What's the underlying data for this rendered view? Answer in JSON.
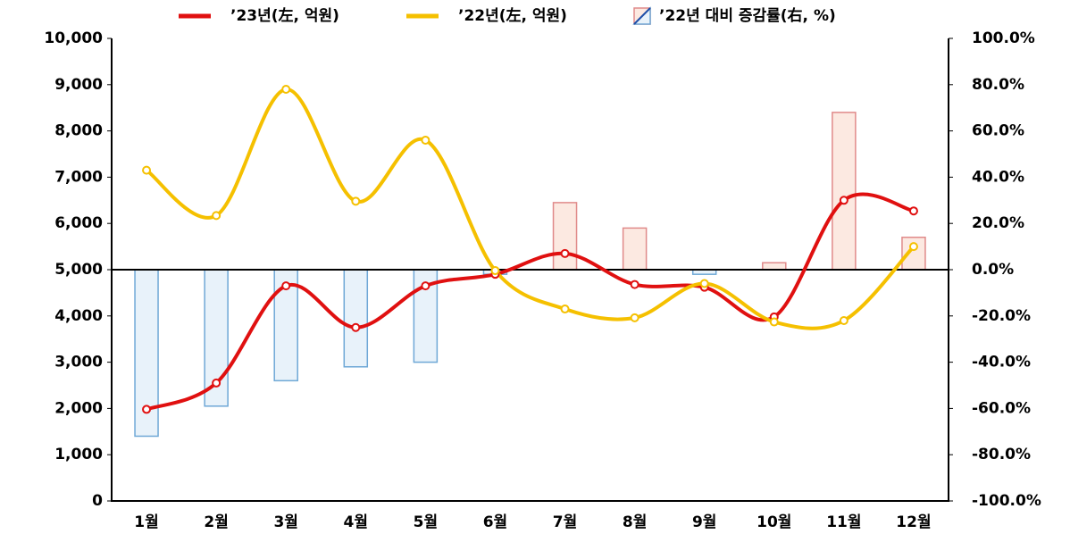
{
  "chart_data": {
    "type": "line",
    "categories": [
      "1월",
      "2월",
      "3월",
      "4월",
      "5월",
      "6월",
      "7월",
      "8월",
      "9월",
      "10월",
      "11월",
      "12월"
    ],
    "series": [
      {
        "name": "’23년(左, 억원)",
        "color": "#e01010",
        "values": [
          1980,
          2550,
          4650,
          3750,
          4650,
          4900,
          5350,
          4680,
          4620,
          3980,
          6500,
          6270
        ]
      },
      {
        "name": "’22년(左, 억원)",
        "color": "#f5c000",
        "values": [
          7150,
          6170,
          8900,
          6480,
          7800,
          4980,
          4150,
          3960,
          4700,
          3870,
          3900,
          5500
        ]
      },
      {
        "name": "’22년 대비 증감률(右, %)",
        "type": "bar",
        "axis": "y2",
        "color": "#fce9e1",
        "negative_color": "#e8f2fa",
        "values": [
          -72,
          -59,
          -48,
          -42,
          -40,
          -2,
          29,
          18,
          -2,
          3,
          68,
          14
        ]
      }
    ],
    "ylim": [
      0,
      10000
    ],
    "yticks": [
      0,
      {
        "value": 1000,
        "label": "1,000"
      },
      {
        "value": 2000,
        "label": "2,000"
      },
      {
        "value": 3000,
        "label": "3,000"
      },
      {
        "value": 4000,
        "label": "4,000"
      },
      {
        "value": 5000,
        "label": "5,000"
      },
      {
        "value": 6000,
        "label": "6,000"
      },
      {
        "value": 7000,
        "label": "7,000"
      },
      {
        "value": 8000,
        "label": "8,000"
      },
      {
        "value": 9000,
        "label": "9,000"
      },
      {
        "value": 10000,
        "label": "10,000"
      }
    ],
    "y2lim": [
      -100,
      100
    ],
    "y2ticks": [
      {
        "value": -100,
        "label": "-100.0%"
      },
      {
        "value": -80,
        "label": "-80.0%"
      },
      {
        "value": -60,
        "label": "-60.0%"
      },
      {
        "value": -40,
        "label": "-40.0%"
      },
      {
        "value": -20,
        "label": "-20.0%"
      },
      {
        "value": 0,
        "label": "0.0%"
      },
      {
        "value": 20,
        "label": "20.0%"
      },
      {
        "value": 40,
        "label": "40.0%"
      },
      {
        "value": 60,
        "label": "60.0%"
      },
      {
        "value": 80,
        "label": "80.0%"
      },
      {
        "value": 100,
        "label": "100.0%"
      }
    ],
    "legend": "top"
  }
}
